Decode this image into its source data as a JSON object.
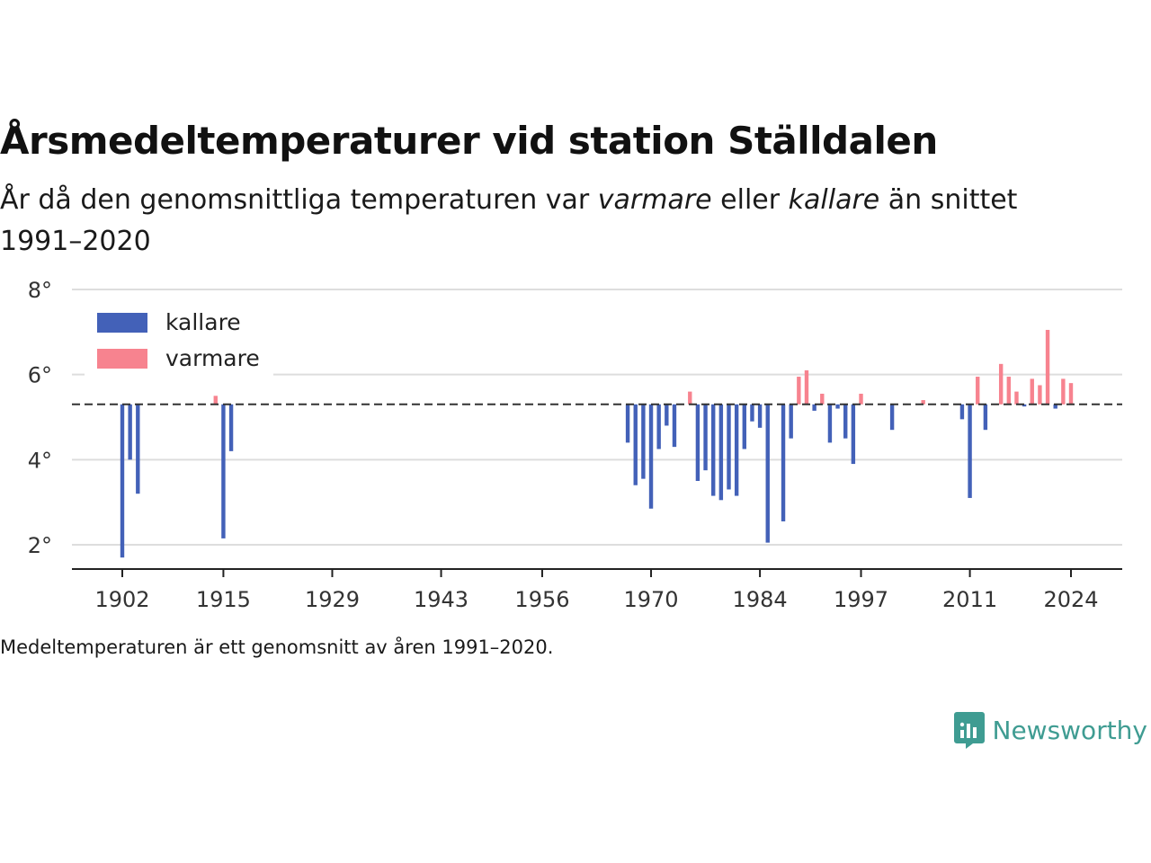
{
  "header": {
    "title": "Årsmedeltemperaturer vid station Ställdalen",
    "subtitle_pre": "År då den genomsnittliga temperaturen var ",
    "subtitle_warm": "varmare",
    "subtitle_mid": " eller ",
    "subtitle_cold": "kallare",
    "subtitle_post": " än snittet 1991–2020"
  },
  "footer": {
    "note": "Medeltemperaturen är ett genomsnitt av åren 1991–2020.",
    "brand": "Newsworthy"
  },
  "colors": {
    "cold": "#4361b8",
    "warm": "#f7838f",
    "logo": "#3f9c92"
  },
  "chart_data": {
    "type": "bar",
    "baseline": 5.3,
    "ylim": [
      1.5,
      8
    ],
    "yticks": [
      2,
      4,
      6,
      8
    ],
    "ytick_labels": [
      "2°",
      "4°",
      "6°",
      "8°"
    ],
    "xlim": [
      1896,
      2031
    ],
    "xticks": [
      1902,
      1915,
      1929,
      1943,
      1956,
      1970,
      1984,
      1997,
      2011,
      2024
    ],
    "legend": [
      {
        "label": "kallare",
        "key": "cold"
      },
      {
        "label": "varmare",
        "key": "warm"
      }
    ],
    "legend_position": "top-left",
    "grid": true,
    "years": [
      1902,
      1903,
      1904,
      1914,
      1915,
      1916,
      1967,
      1968,
      1969,
      1970,
      1971,
      1972,
      1973,
      1975,
      1976,
      1977,
      1978,
      1979,
      1980,
      1981,
      1982,
      1983,
      1984,
      1985,
      1987,
      1988,
      1989,
      1990,
      1991,
      1992,
      1993,
      1994,
      1995,
      1996,
      1997,
      2001,
      2005,
      2010,
      2011,
      2012,
      2013,
      2015,
      2016,
      2017,
      2018,
      2019,
      2020,
      2021,
      2022,
      2023,
      2024
    ],
    "values": [
      1.7,
      4.0,
      3.2,
      5.5,
      2.15,
      4.2,
      4.4,
      3.4,
      3.55,
      2.85,
      4.25,
      4.8,
      4.3,
      5.6,
      3.5,
      3.75,
      3.15,
      3.05,
      3.3,
      3.15,
      4.25,
      4.9,
      4.75,
      2.05,
      2.55,
      4.5,
      5.95,
      6.1,
      5.15,
      5.55,
      4.4,
      5.2,
      4.5,
      3.9,
      5.55,
      4.7,
      5.4,
      4.95,
      3.1,
      5.95,
      4.7,
      6.25,
      5.95,
      5.6,
      5.25,
      5.9,
      5.75,
      7.05,
      5.2,
      5.9,
      5.8
    ]
  }
}
